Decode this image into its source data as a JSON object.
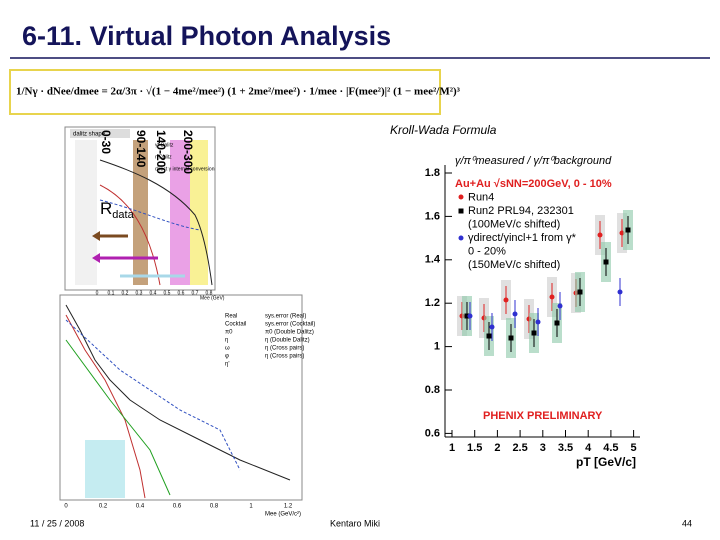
{
  "header": {
    "title": "6-11. Virtual Photon Analysis"
  },
  "formula": "1/Nγ · dNee/dmee = 2α/3π · √(1 − 4me²/mee²) (1 + 2me²/mee²) · 1/mee · |F(mee²)|² (1 − mee²/M²)³",
  "formula_label": "Kroll-Wada Formula",
  "mass_windows": [
    "0-30",
    "90-140",
    "140-200",
    "200-300"
  ],
  "rdata": {
    "main": "R",
    "sub": "data"
  },
  "left_top": {
    "title": "dalitz shape",
    "legend": [
      "γ* Dalitz",
      "η Dalitz",
      "direct γ internal conversion"
    ],
    "xticks": [
      "0",
      "0.1",
      "0.2",
      "0.3",
      "0.4",
      "0.5",
      "0.6",
      "0.7",
      "0.8"
    ],
    "xlabel": "Mee (GeV)"
  },
  "left_bottom": {
    "legend_left": [
      "Real",
      "Cocktail",
      "π0",
      "η",
      "ω",
      "φ",
      "η'"
    ],
    "legend_right": [
      "sys.error (Real)",
      "sys.error (Cocktail)",
      "π0 (Double Dalitz)",
      "η (Double Dalitz)",
      "η (Cross pairs)",
      "η (Cross pairs)"
    ],
    "xticks": [
      "0",
      "0.2",
      "0.4",
      "0.6",
      "0.8",
      "1",
      "1.2"
    ],
    "xlabel": "Mee (GeV/c²)"
  },
  "right_plot": {
    "ytitle": "γ/π⁰measured / γ/π⁰background",
    "legend": [
      "Au+Au √sNN=200GeV, 0 - 10%",
      "Run4",
      "Run2 PRL94, 232301",
      "(100MeV/c shifted)",
      "γdirect/γincl+1 from γ*",
      "0 - 20%",
      "(150MeV/c shifted)"
    ],
    "watermark": "PHENIX PRELIMINARY",
    "yticks": [
      "1.8",
      "1.6",
      "1.4",
      "1.2",
      "1",
      "0.8",
      "0.6"
    ],
    "xticks": [
      "1",
      "1.5",
      "2",
      "2.5",
      "3",
      "3.5",
      "4",
      "4.5",
      "5"
    ],
    "xlabel": "pT [GeV/c]"
  },
  "footer": {
    "date": "11 / 25 / 2008",
    "author": "Kentaro Miki",
    "page": "44"
  }
}
